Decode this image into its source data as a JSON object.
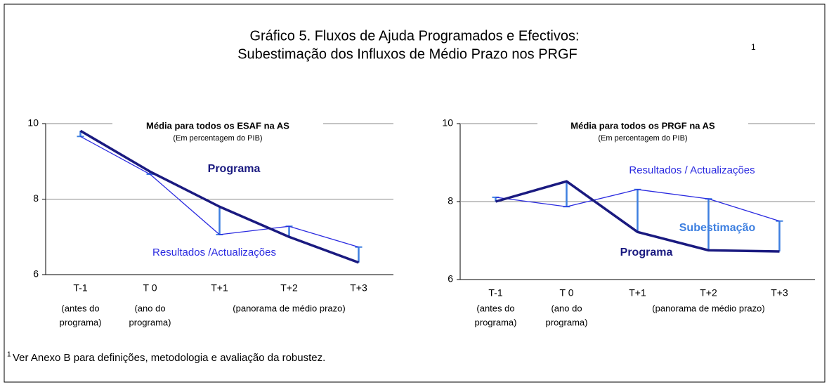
{
  "title": [
    "Gráfico 5. Fluxos de Ajuda Programados e Efectivos:",
    "Subestimação dos Influxos de Médio Prazo nos PRGF"
  ],
  "title_note": "1",
  "footnote_note": "1",
  "footnote": "Ver Anexo B para definições, metodologia e avaliação da robustez.",
  "chart_data": [
    {
      "type": "line",
      "title": "Média para todos os ESAF na AS",
      "subtitle": "(Em percentagem do PIB)",
      "categories": [
        "T-1",
        "T 0",
        "T+1",
        "T+2",
        "T+3"
      ],
      "notes": [
        [
          "(antes do",
          "programa)"
        ],
        [
          "(ano do",
          "programa)"
        ],
        [
          "(panorama de médio prazo)"
        ]
      ],
      "series": [
        {
          "color": "#1a1a80",
          "values": [
            9.81,
            8.73,
            7.8,
            7.0,
            6.32
          ]
        },
        {
          "color": "#2a2ae0",
          "values": [
            9.66,
            8.66,
            7.06,
            7.28,
            6.73
          ]
        }
      ],
      "gap_color": "#3d7fe0",
      "annotations": [
        {
          "text": "Programa",
          "color": "#1a1a80"
        },
        {
          "text": "Resultados /Actualizações",
          "color": "#2a2ae0"
        }
      ],
      "ylim": [
        6,
        10
      ],
      "yticks": [
        6,
        8,
        10
      ],
      "grid": true
    },
    {
      "type": "line",
      "title": "Média para todos os PRGF na AS",
      "subtitle": "(Em percentagem do PIB)",
      "categories": [
        "T-1",
        "T 0",
        "T+1",
        "T+2",
        "T+3"
      ],
      "notes": [
        [
          "(antes do",
          "programa)"
        ],
        [
          "(ano do",
          "programa)"
        ],
        [
          "(panorama de médio prazo)"
        ]
      ],
      "series": [
        {
          "color": "#1a1a80",
          "values": [
            8.0,
            8.52,
            7.22,
            6.75,
            6.72
          ]
        },
        {
          "color": "#2a2ae0",
          "values": [
            8.11,
            7.87,
            8.31,
            8.07,
            7.5
          ]
        }
      ],
      "gap_color": "#3d7fe0",
      "annotations": [
        {
          "text": "Resultados / Actualizações",
          "color": "#2a2ae0"
        },
        {
          "text": "Subestimação",
          "color": "#3d7fe0"
        },
        {
          "text": "Programa",
          "color": "#1a1a80"
        }
      ],
      "ylim": [
        6,
        10
      ],
      "yticks": [
        6,
        8,
        10
      ],
      "grid": true
    }
  ]
}
